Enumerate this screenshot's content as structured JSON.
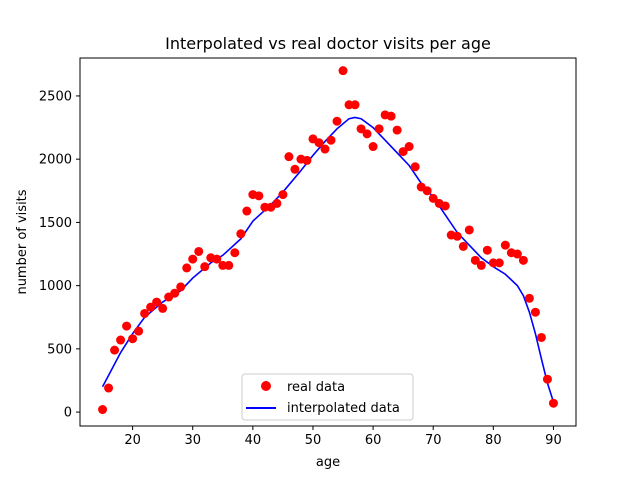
{
  "chart_data": {
    "type": "scatter",
    "title": "Interpolated vs real doctor visits per age",
    "xlabel": "age",
    "ylabel": "number of visits",
    "xlim": [
      11.25,
      93.75
    ],
    "ylim": [
      -110,
      2800
    ],
    "xticks": [
      20,
      30,
      40,
      50,
      60,
      70,
      80,
      90
    ],
    "yticks": [
      0,
      500,
      1000,
      1500,
      2000,
      2500
    ],
    "grid": false,
    "legend_position": "bottom-center",
    "series": [
      {
        "name": "real data",
        "kind": "points",
        "color": "#ff0000",
        "x": [
          15,
          16,
          17,
          18,
          19,
          20,
          21,
          22,
          23,
          24,
          25,
          26,
          27,
          28,
          29,
          30,
          31,
          32,
          33,
          34,
          35,
          36,
          37,
          38,
          39,
          40,
          41,
          42,
          43,
          44,
          45,
          46,
          47,
          48,
          49,
          50,
          51,
          52,
          53,
          54,
          55,
          56,
          57,
          58,
          59,
          60,
          61,
          62,
          63,
          64,
          65,
          66,
          67,
          68,
          69,
          70,
          71,
          72,
          73,
          74,
          75,
          76,
          77,
          78,
          79,
          80,
          81,
          82,
          83,
          84,
          85,
          86,
          87,
          88,
          89,
          90
        ],
        "y": [
          20,
          190,
          490,
          570,
          680,
          580,
          640,
          780,
          830,
          870,
          820,
          910,
          940,
          990,
          1140,
          1210,
          1270,
          1150,
          1220,
          1210,
          1160,
          1160,
          1260,
          1410,
          1590,
          1720,
          1710,
          1620,
          1620,
          1650,
          1720,
          2020,
          1920,
          2000,
          1990,
          2160,
          2130,
          2080,
          2150,
          2300,
          2700,
          2430,
          2430,
          2240,
          2200,
          2100,
          2240,
          2350,
          2340,
          2230,
          2060,
          2100,
          1940,
          1780,
          1750,
          1690,
          1650,
          1630,
          1400,
          1390,
          1310,
          1440,
          1200,
          1160,
          1280,
          1180,
          1180,
          1320,
          1260,
          1250,
          1200,
          900,
          790,
          590,
          260,
          70
        ]
      },
      {
        "name": "interpolated data",
        "kind": "line",
        "color": "#0000ff",
        "x": [
          15,
          18,
          20,
          22,
          25,
          28,
          30,
          33,
          35,
          38,
          40,
          43,
          45,
          48,
          50,
          52,
          54,
          56,
          57,
          58,
          60,
          62,
          64,
          66,
          68,
          70,
          72,
          74,
          76,
          78,
          80,
          82,
          84,
          85,
          86,
          87,
          88,
          89,
          90
        ],
        "y": [
          200,
          470,
          620,
          750,
          870,
          960,
          1060,
          1180,
          1240,
          1370,
          1510,
          1640,
          1740,
          1910,
          2030,
          2140,
          2240,
          2320,
          2330,
          2320,
          2250,
          2150,
          2050,
          1950,
          1810,
          1700,
          1560,
          1420,
          1320,
          1220,
          1150,
          1090,
          1000,
          920,
          790,
          620,
          420,
          230,
          80
        ]
      }
    ]
  }
}
